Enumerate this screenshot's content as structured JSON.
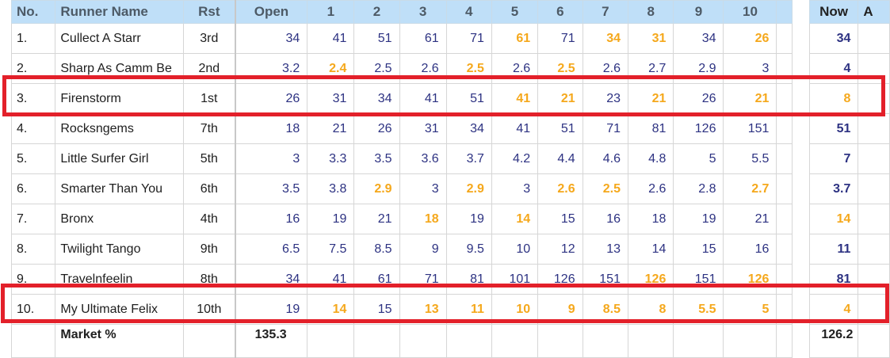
{
  "headers": {
    "no": "No.",
    "runner": "Runner Name",
    "rst": "Rst",
    "open": "Open",
    "cols": [
      "1",
      "2",
      "3",
      "4",
      "5",
      "6",
      "7",
      "8",
      "9",
      "10"
    ],
    "now": "Now",
    "next": "A"
  },
  "rows": [
    {
      "no": "1.",
      "name": "Cullect A Starr",
      "rst": "3rd",
      "open": "34",
      "prices": [
        "41",
        "51",
        "61",
        "71",
        "61",
        "71",
        "34",
        "31",
        "34",
        "26"
      ],
      "hi": [
        5,
        7,
        8,
        10
      ],
      "now": "34",
      "now_hi": false
    },
    {
      "no": "2.",
      "name": "Sharp As Camm Be",
      "rst": "2nd",
      "open": "3.2",
      "prices": [
        "2.4",
        "2.5",
        "2.6",
        "2.5",
        "2.6",
        "2.5",
        "2.6",
        "2.7",
        "2.9",
        "3"
      ],
      "hi": [
        1,
        4,
        6
      ],
      "now": "4",
      "now_hi": false
    },
    {
      "no": "3.",
      "name": "Firenstorm",
      "rst": "1st",
      "open": "26",
      "prices": [
        "31",
        "34",
        "41",
        "51",
        "41",
        "21",
        "23",
        "21",
        "26",
        "21"
      ],
      "hi": [
        5,
        6,
        8,
        10
      ],
      "now": "8",
      "now_hi": true
    },
    {
      "no": "4.",
      "name": "Rocksngems",
      "rst": "7th",
      "open": "18",
      "prices": [
        "21",
        "26",
        "31",
        "34",
        "41",
        "51",
        "71",
        "81",
        "126",
        "151"
      ],
      "hi": [],
      "now": "51",
      "now_hi": false
    },
    {
      "no": "5.",
      "name": "Little Surfer Girl",
      "rst": "5th",
      "open": "3",
      "prices": [
        "3.3",
        "3.5",
        "3.6",
        "3.7",
        "4.2",
        "4.4",
        "4.6",
        "4.8",
        "5",
        "5.5"
      ],
      "hi": [],
      "now": "7",
      "now_hi": false
    },
    {
      "no": "6.",
      "name": "Smarter Than You",
      "rst": "6th",
      "open": "3.5",
      "prices": [
        "3.8",
        "2.9",
        "3",
        "2.9",
        "3",
        "2.6",
        "2.5",
        "2.6",
        "2.8",
        "2.7"
      ],
      "hi": [
        2,
        4,
        6,
        7,
        10
      ],
      "now": "3.7",
      "now_hi": false
    },
    {
      "no": "7.",
      "name": "Bronx",
      "rst": "4th",
      "open": "16",
      "prices": [
        "19",
        "21",
        "18",
        "19",
        "14",
        "15",
        "16",
        "18",
        "19",
        "21"
      ],
      "hi": [
        3,
        5
      ],
      "now": "14",
      "now_hi": true
    },
    {
      "no": "8.",
      "name": "Twilight Tango",
      "rst": "9th",
      "open": "6.5",
      "prices": [
        "7.5",
        "8.5",
        "9",
        "9.5",
        "10",
        "12",
        "13",
        "14",
        "15",
        "16"
      ],
      "hi": [],
      "now": "11",
      "now_hi": false
    },
    {
      "no": "9.",
      "name": "Travelnfeelin",
      "rst": "8th",
      "open": "34",
      "prices": [
        "41",
        "61",
        "71",
        "81",
        "101",
        "126",
        "151",
        "126",
        "151",
        "126"
      ],
      "hi": [
        8,
        10
      ],
      "now": "81",
      "now_hi": false
    },
    {
      "no": "10.",
      "name": "My Ultimate Felix",
      "rst": "10th",
      "open": "19",
      "prices": [
        "14",
        "15",
        "13",
        "11",
        "10",
        "9",
        "8.5",
        "8",
        "5.5",
        "5"
      ],
      "hi": [
        1,
        3,
        4,
        5,
        6,
        7,
        8,
        9,
        10
      ],
      "now": "4",
      "now_hi": true
    }
  ],
  "footer": {
    "label": "Market %",
    "open": "135.3",
    "now": "126.2"
  },
  "colors": {
    "highlight": "#f5a81c",
    "normal": "#2d3282",
    "box": "#e3202a",
    "header_bg": "#bfdff8"
  },
  "highlighted_rows": [
    3,
    10
  ]
}
